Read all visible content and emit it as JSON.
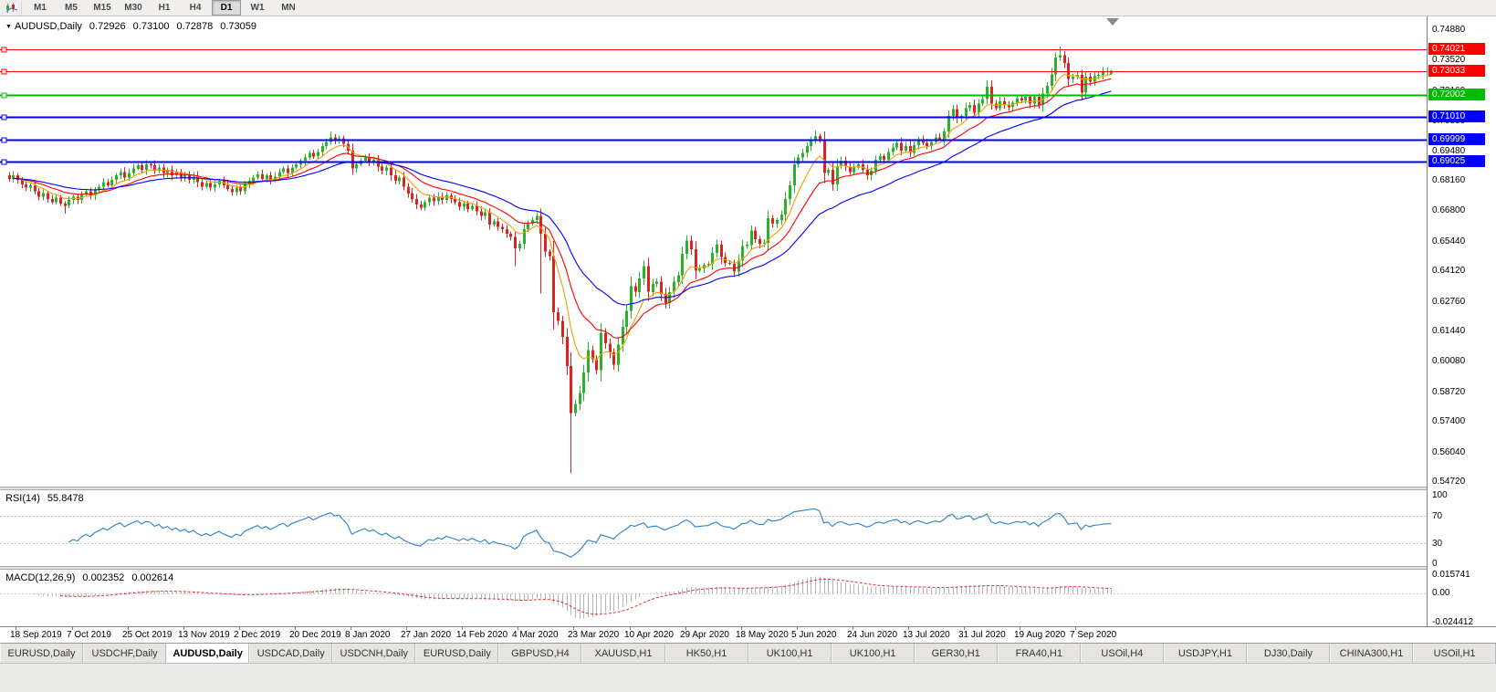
{
  "toolbar": {
    "timeframes": [
      {
        "label": "M1",
        "active": false
      },
      {
        "label": "M5",
        "active": false
      },
      {
        "label": "M15",
        "active": false
      },
      {
        "label": "M30",
        "active": false
      },
      {
        "label": "H1",
        "active": false
      },
      {
        "label": "H4",
        "active": false
      },
      {
        "label": "D1",
        "active": true
      },
      {
        "label": "W1",
        "active": false
      },
      {
        "label": "MN",
        "active": false
      }
    ]
  },
  "icons": {
    "quote_expand": "▼"
  },
  "quote": {
    "symbol": "AUDUSD,Daily",
    "open": "0.72926",
    "high": "0.73100",
    "low": "0.72878",
    "close": "0.73059"
  },
  "price_axis": {
    "min": 0.5472,
    "max": 0.7488,
    "labels": [
      "0.74880",
      "0.73520",
      "0.72160",
      "0.70800",
      "0.69480",
      "0.68160",
      "0.66800",
      "0.65440",
      "0.64120",
      "0.62760",
      "0.61440",
      "0.60080",
      "0.58720",
      "0.57400",
      "0.56040",
      "0.54720"
    ]
  },
  "hlines": [
    {
      "value": 0.74021,
      "label": "0.74021",
      "color": "#ff0000",
      "width": 1
    },
    {
      "value": 0.73033,
      "label": "0.73033",
      "color": "#ff0000",
      "width": 1
    },
    {
      "value": 0.72002,
      "label": "0.72002",
      "color": "#00bb00",
      "width": 2
    },
    {
      "value": 0.7101,
      "label": "0.71010",
      "color": "#0000ff",
      "width": 2
    },
    {
      "value": 0.69999,
      "label": "0.69999",
      "color": "#0000ff",
      "width": 2
    },
    {
      "value": 0.69025,
      "label": "0.69025",
      "color": "#0000ff",
      "width": 2
    }
  ],
  "rsi": {
    "name": "RSI(14)",
    "value": "55.8478",
    "period": 14,
    "axis": [
      "100",
      "70",
      "30",
      "0"
    ],
    "levels": [
      70,
      30
    ],
    "color": "#2a7fce"
  },
  "macd": {
    "name": "MACD(12,26,9)",
    "value1": "0.002352",
    "value2": "0.002614",
    "axis_max": "0.015741",
    "axis_zero": "0.00",
    "axis_min": "-0.024412",
    "ylim": [
      -0.024412,
      0.015741
    ],
    "histogram_color": "#b4b4b4",
    "signal_color": "#e03030"
  },
  "dates": [
    "18 Sep 2019",
    "7 Oct 2019",
    "25 Oct 2019",
    "13 Nov 2019",
    "2 Dec 2019",
    "20 Dec 2019",
    "8 Jan 2020",
    "27 Jan 2020",
    "14 Feb 2020",
    "4 Mar 2020",
    "23 Mar 2020",
    "10 Apr 2020",
    "29 Apr 2020",
    "18 May 2020",
    "5 Jun 2020",
    "24 Jun 2020",
    "13 Jul 2020",
    "31 Jul 2020",
    "19 Aug 2020",
    "7 Sep 2020"
  ],
  "tabs": [
    {
      "label": "EURUSD,Daily",
      "active": false
    },
    {
      "label": "USDCHF,Daily",
      "active": false
    },
    {
      "label": "AUDUSD,Daily",
      "active": true
    },
    {
      "label": "USDCAD,Daily",
      "active": false
    },
    {
      "label": "USDCNH,Daily",
      "active": false
    },
    {
      "label": "EURUSD,Daily",
      "active": false
    },
    {
      "label": "GBPUSD,H4",
      "active": false
    },
    {
      "label": "XAUUSD,H1",
      "active": false
    },
    {
      "label": "HK50,H1",
      "active": false
    },
    {
      "label": "UK100,H1",
      "active": false
    },
    {
      "label": "UK100,H1",
      "active": false
    },
    {
      "label": "GER30,H1",
      "active": false
    },
    {
      "label": "FRA40,H1",
      "active": false
    },
    {
      "label": "USOil,H4",
      "active": false
    },
    {
      "label": "USDJPY,H1",
      "active": false
    },
    {
      "label": "DJ30,Daily",
      "active": false
    },
    {
      "label": "CHINA300,H1",
      "active": false
    },
    {
      "label": "USOil,H1",
      "active": false
    }
  ],
  "chart_data": {
    "type": "candlestick",
    "symbol": "AUDUSD",
    "timeframe": "Daily",
    "ylim": [
      0.5472,
      0.7488
    ],
    "up_color": "#2bb12b",
    "down_color": "#dd2222",
    "seed": 42,
    "ma": [
      {
        "period": 8,
        "color": "#f0a000"
      },
      {
        "period": 17,
        "color": "#ff0000"
      },
      {
        "period": 34,
        "color": "#0000ff"
      }
    ],
    "closes": [
      0.6825,
      0.684,
      0.682,
      0.68,
      0.6785,
      0.6795,
      0.677,
      0.6745,
      0.676,
      0.6735,
      0.672,
      0.674,
      0.6715,
      0.6705,
      0.673,
      0.6745,
      0.673,
      0.6755,
      0.677,
      0.675,
      0.6775,
      0.679,
      0.681,
      0.6795,
      0.682,
      0.684,
      0.6855,
      0.683,
      0.685,
      0.687,
      0.6885,
      0.6865,
      0.689,
      0.6885,
      0.686,
      0.6875,
      0.685,
      0.6865,
      0.684,
      0.6855,
      0.683,
      0.6845,
      0.682,
      0.6835,
      0.681,
      0.679,
      0.6805,
      0.6785,
      0.68,
      0.6815,
      0.6795,
      0.678,
      0.6765,
      0.6785,
      0.677,
      0.68,
      0.6815,
      0.683,
      0.6845,
      0.6825,
      0.684,
      0.682,
      0.6835,
      0.6855,
      0.687,
      0.685,
      0.6875,
      0.689,
      0.6905,
      0.692,
      0.694,
      0.6925,
      0.6945,
      0.697,
      0.699,
      0.701,
      0.6995,
      0.7005,
      0.698,
      0.695,
      0.687,
      0.689,
      0.6905,
      0.692,
      0.6895,
      0.691,
      0.688,
      0.686,
      0.6875,
      0.684,
      0.6815,
      0.683,
      0.679,
      0.676,
      0.6735,
      0.671,
      0.6695,
      0.672,
      0.674,
      0.6725,
      0.6745,
      0.673,
      0.675,
      0.6735,
      0.672,
      0.67,
      0.6715,
      0.669,
      0.6705,
      0.668,
      0.666,
      0.6675,
      0.662,
      0.6635,
      0.661,
      0.66,
      0.658,
      0.6565,
      0.6515,
      0.6535,
      0.66,
      0.6625,
      0.664,
      0.666,
      0.658,
      0.65,
      0.648,
      0.623,
      0.619,
      0.612,
      0.599,
      0.578,
      0.582,
      0.587,
      0.596,
      0.606,
      0.602,
      0.597,
      0.6135,
      0.609,
      0.605,
      0.5995,
      0.6085,
      0.6165,
      0.6235,
      0.6345,
      0.632,
      0.638,
      0.6435,
      0.632,
      0.6355,
      0.6365,
      0.631,
      0.627,
      0.632,
      0.6365,
      0.6395,
      0.649,
      0.655,
      0.651,
      0.6415,
      0.6425,
      0.644,
      0.6445,
      0.6495,
      0.653,
      0.6475,
      0.645,
      0.6445,
      0.641,
      0.646,
      0.6525,
      0.653,
      0.6595,
      0.6555,
      0.6535,
      0.654,
      0.665,
      0.6625,
      0.664,
      0.6665,
      0.6735,
      0.6795,
      0.689,
      0.692,
      0.694,
      0.697,
      0.7,
      0.7015,
      0.6995,
      0.685,
      0.6865,
      0.68,
      0.688,
      0.6905,
      0.688,
      0.6855,
      0.6875,
      0.689,
      0.6865,
      0.684,
      0.686,
      0.691,
      0.6925,
      0.691,
      0.6945,
      0.6965,
      0.6985,
      0.695,
      0.697,
      0.694,
      0.6975,
      0.7,
      0.6985,
      0.697,
      0.699,
      0.701,
      0.7,
      0.7035,
      0.7105,
      0.7135,
      0.7095,
      0.7105,
      0.714,
      0.7155,
      0.712,
      0.716,
      0.718,
      0.7235,
      0.716,
      0.714,
      0.717,
      0.7155,
      0.7145,
      0.7165,
      0.7185,
      0.7175,
      0.719,
      0.716,
      0.719,
      0.7155,
      0.7205,
      0.724,
      0.729,
      0.7365,
      0.7376,
      0.7342,
      0.727,
      0.7281,
      0.7288,
      0.721,
      0.7281,
      0.7258,
      0.7284,
      0.7288,
      0.7302,
      0.7305,
      0.73059
    ],
    "wick_overrides": {
      "13": {
        "low": 0.667
      },
      "75": {
        "high": 0.7035
      },
      "118": {
        "low": 0.6435
      },
      "124": {
        "low": 0.6313
      },
      "131": {
        "low": 0.551
      },
      "188": {
        "high": 0.704
      },
      "245": {
        "high": 0.7414
      }
    },
    "last_bar": {
      "open": 0.72926,
      "high": 0.731,
      "low": 0.72878,
      "close": 0.73059
    }
  }
}
